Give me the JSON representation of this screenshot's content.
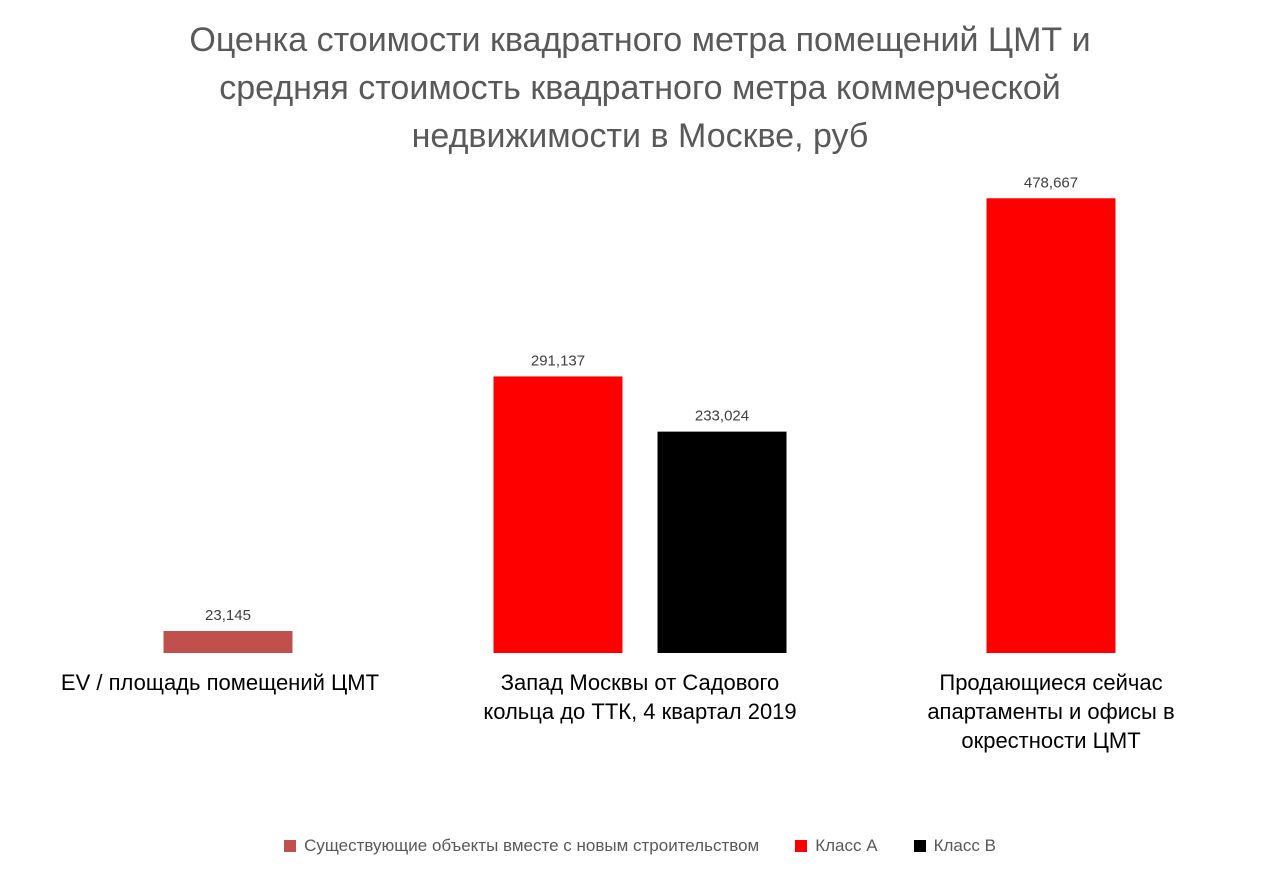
{
  "chart_data": {
    "type": "bar",
    "title_lines": [
      "Оценка стоимости квадратного метра помещений ЦМТ и",
      "средняя стоимость квадратного метра коммерческой",
      "недвижимости в Москве, руб"
    ],
    "categories": [
      {
        "lines": [
          "EV / площадь помещений ЦМТ"
        ]
      },
      {
        "lines": [
          "Запад Москвы от Садового",
          "кольца до ТТК, 4 квартал 2019"
        ]
      },
      {
        "lines": [
          "Продающиеся сейчас",
          "апартаменты и офисы в",
          "окрестности ЦМТ"
        ]
      }
    ],
    "series": [
      {
        "name": "Существующие объекты вместе с новым строительством",
        "color": "#C0504D",
        "values": [
          23145,
          null,
          null
        ]
      },
      {
        "name": "Класс А",
        "color": "#FF0000",
        "values": [
          null,
          291137,
          478667
        ]
      },
      {
        "name": "Класс В",
        "color": "#000000",
        "values": [
          null,
          233024,
          null
        ]
      }
    ],
    "bars": [
      {
        "category": 0,
        "series": 0,
        "value": 23145,
        "label": "23,145"
      },
      {
        "category": 1,
        "series": 1,
        "value": 291137,
        "label": "291,137"
      },
      {
        "category": 1,
        "series": 2,
        "value": 233024,
        "label": "233,024"
      },
      {
        "category": 2,
        "series": 1,
        "value": 478667,
        "label": "478,667"
      }
    ],
    "ylim": [
      0,
      500000
    ],
    "xlabel": "",
    "ylabel": "",
    "grid": false,
    "legend_position": "bottom"
  }
}
